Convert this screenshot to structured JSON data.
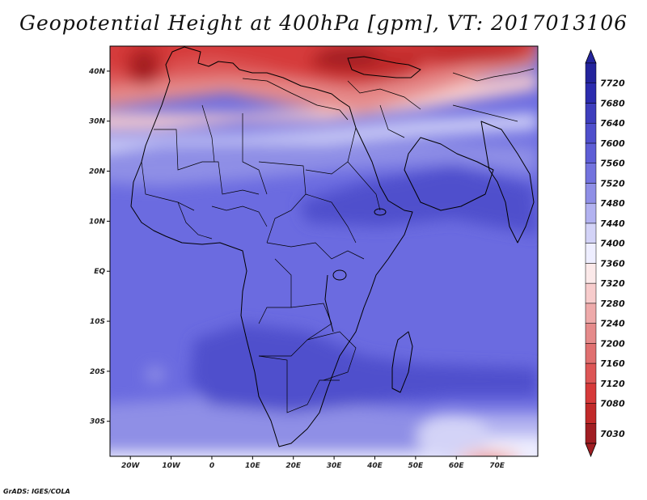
{
  "title": "Geopotential Height at 400hPa [gpm], VT: 2017013106",
  "credit": "GrADS: IGES/COLA",
  "map": {
    "lon_range": [
      -25,
      80
    ],
    "lat_range": [
      -37,
      45
    ],
    "lat_ticks": [
      {
        "value": 40,
        "label": "40N"
      },
      {
        "value": 30,
        "label": "30N"
      },
      {
        "value": 20,
        "label": "20N"
      },
      {
        "value": 10,
        "label": "10N"
      },
      {
        "value": 0,
        "label": "EQ"
      },
      {
        "value": -10,
        "label": "10S"
      },
      {
        "value": -20,
        "label": "20S"
      },
      {
        "value": -30,
        "label": "30S"
      }
    ],
    "lon_ticks": [
      {
        "value": -20,
        "label": "20W"
      },
      {
        "value": -10,
        "label": "10W"
      },
      {
        "value": 0,
        "label": "0"
      },
      {
        "value": 10,
        "label": "10E"
      },
      {
        "value": 20,
        "label": "20E"
      },
      {
        "value": 30,
        "label": "30E"
      },
      {
        "value": 40,
        "label": "40E"
      },
      {
        "value": 50,
        "label": "50E"
      },
      {
        "value": 60,
        "label": "60E"
      },
      {
        "value": 70,
        "label": "70E"
      }
    ]
  },
  "colorbar": {
    "levels": [
      "7030",
      "7080",
      "7120",
      "7160",
      "7200",
      "7240",
      "7280",
      "7320",
      "7360",
      "7400",
      "7440",
      "7480",
      "7520",
      "7560",
      "7600",
      "7640",
      "7680",
      "7720"
    ],
    "colors": [
      "#a01e23",
      "#c12a2a",
      "#d63a3a",
      "#dd5656",
      "#e07070",
      "#e58b8b",
      "#eeaaaa",
      "#f7cccc",
      "#fbe9e9",
      "#eeeeff",
      "#d3d3f7",
      "#b2b2f0",
      "#8f8fe6",
      "#7373de",
      "#5e5ed6",
      "#4f4fcc",
      "#3e3ebd",
      "#2c2cae",
      "#24249c"
    ]
  }
}
